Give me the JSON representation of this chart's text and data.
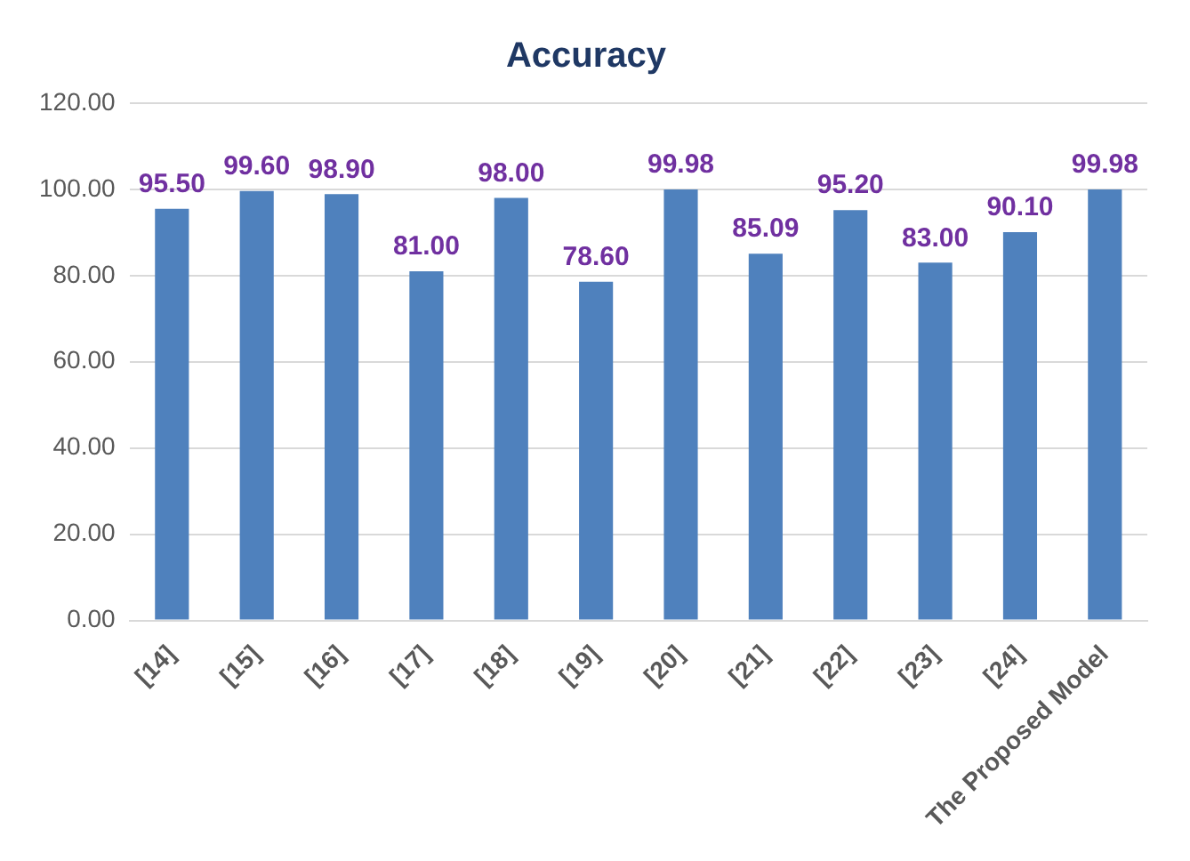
{
  "chart_data": {
    "type": "bar",
    "title": "Accuracy",
    "categories": [
      "[14]",
      "[15]",
      "[16]",
      "[17]",
      "[18]",
      "[19]",
      "[20]",
      "[21]",
      "[22]",
      "[23]",
      "[24]",
      "The Proposed Model"
    ],
    "values": [
      95.5,
      99.6,
      98.9,
      81,
      98,
      78.6,
      99.98,
      85.09,
      95.2,
      83,
      90.1,
      99.98
    ],
    "value_labels": [
      "95.50",
      "99.60",
      "98.90",
      "81.00",
      "98.00",
      "78.60",
      "99.98",
      "85.09",
      "95.20",
      "83.00",
      "90.10",
      "99.98"
    ],
    "color": "#4f81bd",
    "ylim": [
      0,
      120
    ],
    "yticks": [
      {
        "value": 0,
        "label": "0.00"
      },
      {
        "value": 20,
        "label": "20.00"
      },
      {
        "value": 40,
        "label": "40.00"
      },
      {
        "value": 60,
        "label": "60.00"
      },
      {
        "value": 80,
        "label": "80.00"
      },
      {
        "value": 100,
        "label": "100.00"
      },
      {
        "value": 120,
        "label": "120.00"
      }
    ],
    "grid": "y",
    "legend": false
  }
}
